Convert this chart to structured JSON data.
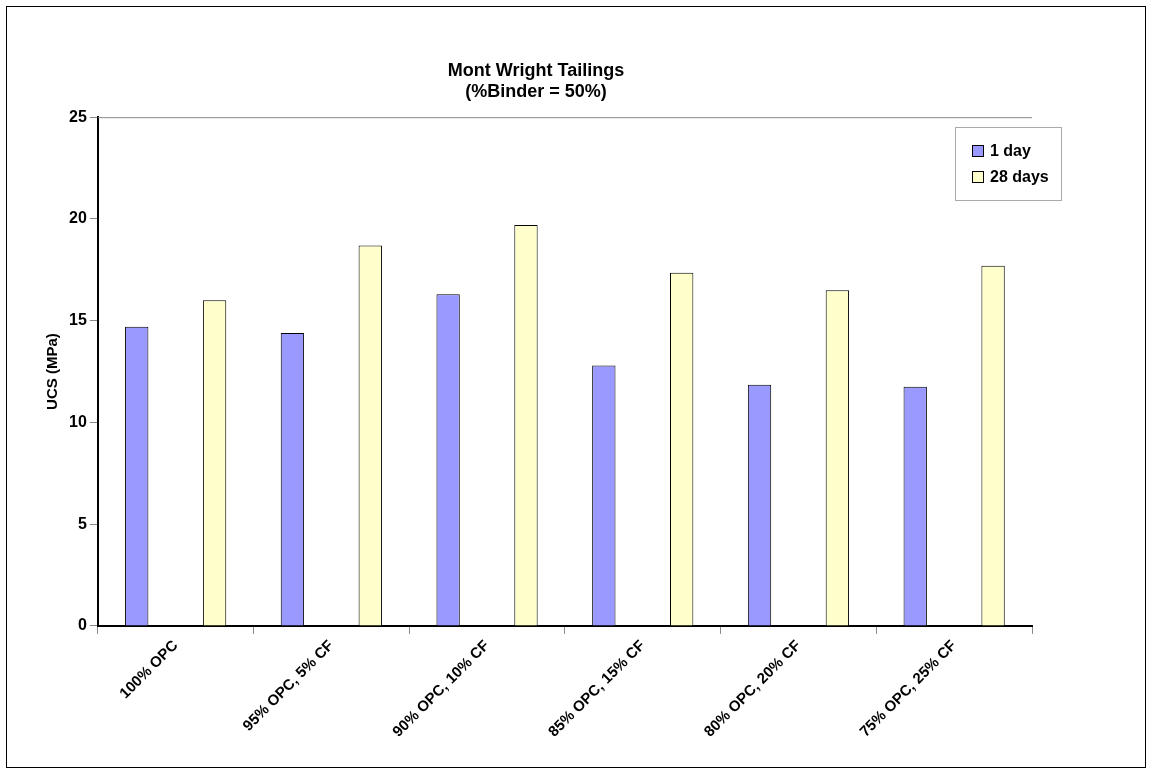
{
  "chart_data": {
    "type": "bar",
    "title": "Mont Wright Tailings\n(%Binder = 50%)",
    "ylabel": "UCS (MPa)",
    "categories": [
      "100% OPC",
      "95% OPC, 5% CF",
      "90% OPC, 10% CF",
      "85% OPC, 15% CF",
      "80% OPC, 20% CF",
      "75% OPC, 25% CF"
    ],
    "series": [
      {
        "name": "1 day",
        "color": "#9999ff",
        "values": [
          14.7,
          14.4,
          16.3,
          12.8,
          11.85,
          11.75
        ]
      },
      {
        "name": "28 days",
        "color": "#ffffcc",
        "values": [
          16.0,
          18.7,
          19.7,
          17.35,
          16.5,
          17.7
        ]
      }
    ],
    "ylim": [
      0,
      25
    ],
    "yticks": [
      0,
      5,
      10,
      15,
      20,
      25
    ],
    "grid": false,
    "legend": "top right"
  }
}
